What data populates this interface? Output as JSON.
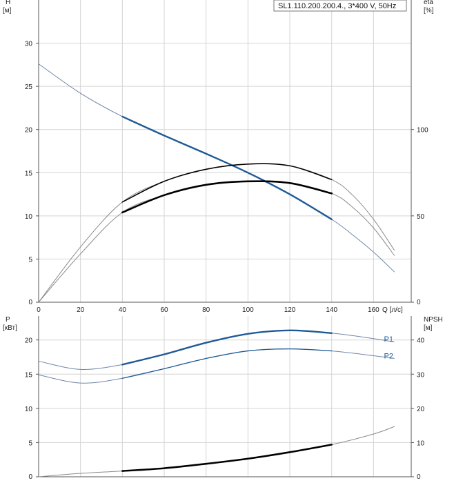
{
  "badge": "SL1.110.200.200.4., 3*400 V, 50Hz",
  "colors": {
    "blue": "#1f5a96",
    "thin_blue": "#6f86a8",
    "black": "#000000",
    "gray": "#8a8a8a",
    "grid": "#d4d4d4"
  },
  "chart_data": [
    {
      "type": "line",
      "panel": "upper",
      "ylabel": "H",
      "yunit": "[м]",
      "y2label": "eta",
      "y2unit": "[%]",
      "xlabel": "Q [л/с]",
      "xlim": [
        0,
        178
      ],
      "ylim": [
        0,
        35
      ],
      "y2lim": [
        0,
        175
      ],
      "x_ticks": [
        0,
        20,
        40,
        60,
        80,
        100,
        120,
        140,
        160
      ],
      "y_ticks": [
        0,
        5,
        10,
        15,
        20,
        25,
        30
      ],
      "y2_ticks": [
        0,
        50,
        100
      ],
      "grid": true,
      "series": [
        {
          "axis": "y",
          "x": [
            0,
            20,
            40,
            60,
            80,
            100,
            120,
            140,
            150,
            160,
            170
          ],
          "y": [
            27.6,
            24.2,
            21.5,
            19.3,
            17.2,
            15.0,
            12.5,
            9.6,
            7.8,
            5.8,
            3.5
          ],
          "op_range": [
            40,
            140
          ],
          "style": "blue"
        },
        {
          "axis": "y2",
          "x": [
            0,
            20,
            40,
            60,
            80,
            100,
            120,
            140,
            150,
            160,
            170
          ],
          "y": [
            0,
            32,
            58,
            70,
            77,
            80,
            79,
            71,
            62,
            48,
            30
          ],
          "op_range": [
            40,
            140
          ],
          "style": "black-thick"
        },
        {
          "axis": "y2",
          "x": [
            0,
            20,
            40,
            60,
            80,
            100,
            120,
            140,
            150,
            160,
            170
          ],
          "y": [
            0,
            28,
            52,
            62,
            68,
            70,
            69,
            63,
            55,
            43,
            27
          ],
          "op_range": [
            40,
            140
          ],
          "style": "black-bold"
        }
      ]
    },
    {
      "type": "line",
      "panel": "lower",
      "ylabel": "P",
      "yunit": "[кВт]",
      "y2label": "NPSH",
      "y2unit": "[м]",
      "xlim": [
        0,
        178
      ],
      "ylim": [
        0,
        23.5
      ],
      "y2lim": [
        0,
        47
      ],
      "y_ticks": [
        0,
        5,
        10,
        15,
        20
      ],
      "y2_ticks": [
        0,
        10,
        20,
        30,
        40
      ],
      "grid": true,
      "series": [
        {
          "name": "P1",
          "axis": "y",
          "x": [
            0,
            20,
            40,
            60,
            80,
            100,
            120,
            140,
            160,
            170
          ],
          "y": [
            16.9,
            15.7,
            16.4,
            17.9,
            19.6,
            20.9,
            21.4,
            21.0,
            20.2,
            19.7
          ],
          "op_range": [
            40,
            140
          ],
          "style": "blue"
        },
        {
          "name": "P2",
          "axis": "y",
          "x": [
            0,
            20,
            40,
            60,
            80,
            100,
            120,
            140,
            160,
            170
          ],
          "y": [
            14.9,
            13.7,
            14.4,
            15.8,
            17.3,
            18.4,
            18.7,
            18.4,
            17.7,
            17.3
          ],
          "op_range": [
            40,
            140
          ],
          "style": "blue-thin"
        },
        {
          "name": "",
          "axis": "y2",
          "x": [
            0,
            20,
            40,
            60,
            80,
            100,
            120,
            140,
            160,
            170
          ],
          "y": [
            0,
            1,
            1.7,
            2.5,
            3.8,
            5.3,
            7.2,
            9.4,
            12.5,
            14.7
          ],
          "op_range": [
            40,
            140
          ],
          "style": "black-bold"
        }
      ]
    }
  ]
}
